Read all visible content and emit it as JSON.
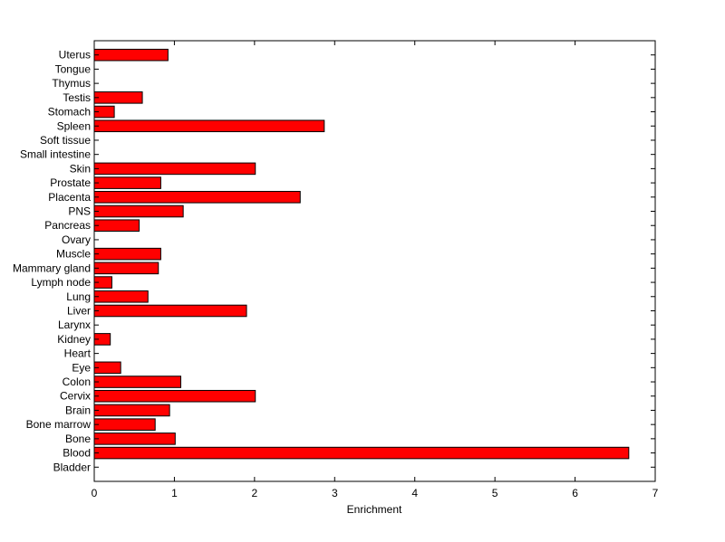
{
  "chart_data": {
    "type": "bar",
    "orientation": "horizontal",
    "title": "",
    "xlabel": "Enrichment",
    "ylabel": "",
    "xlim": [
      0,
      7
    ],
    "xticks": [
      "0",
      "1",
      "2",
      "3",
      "4",
      "5",
      "6",
      "7"
    ],
    "grid": false,
    "bar_color": "#ff0000",
    "categories": [
      "Bladder",
      "Blood",
      "Bone",
      "Bone marrow",
      "Brain",
      "Cervix",
      "Colon",
      "Eye",
      "Heart",
      "Kidney",
      "Larynx",
      "Liver",
      "Lung",
      "Lymph node",
      "Mammary gland",
      "Muscle",
      "Ovary",
      "Pancreas",
      "PNS",
      "Placenta",
      "Prostate",
      "Skin",
      "Small intestine",
      "Soft tissue",
      "Spleen",
      "Stomach",
      "Testis",
      "Thymus",
      "Tongue",
      "Uterus"
    ],
    "values": [
      0,
      6.67,
      1.01,
      0.76,
      0.94,
      2.01,
      1.08,
      0.33,
      0,
      0.2,
      0,
      1.9,
      0.67,
      0.22,
      0.8,
      0.83,
      0,
      0.56,
      1.11,
      2.57,
      0.83,
      2.01,
      0,
      0,
      2.87,
      0.25,
      0.6,
      0,
      0,
      0.92
    ]
  }
}
